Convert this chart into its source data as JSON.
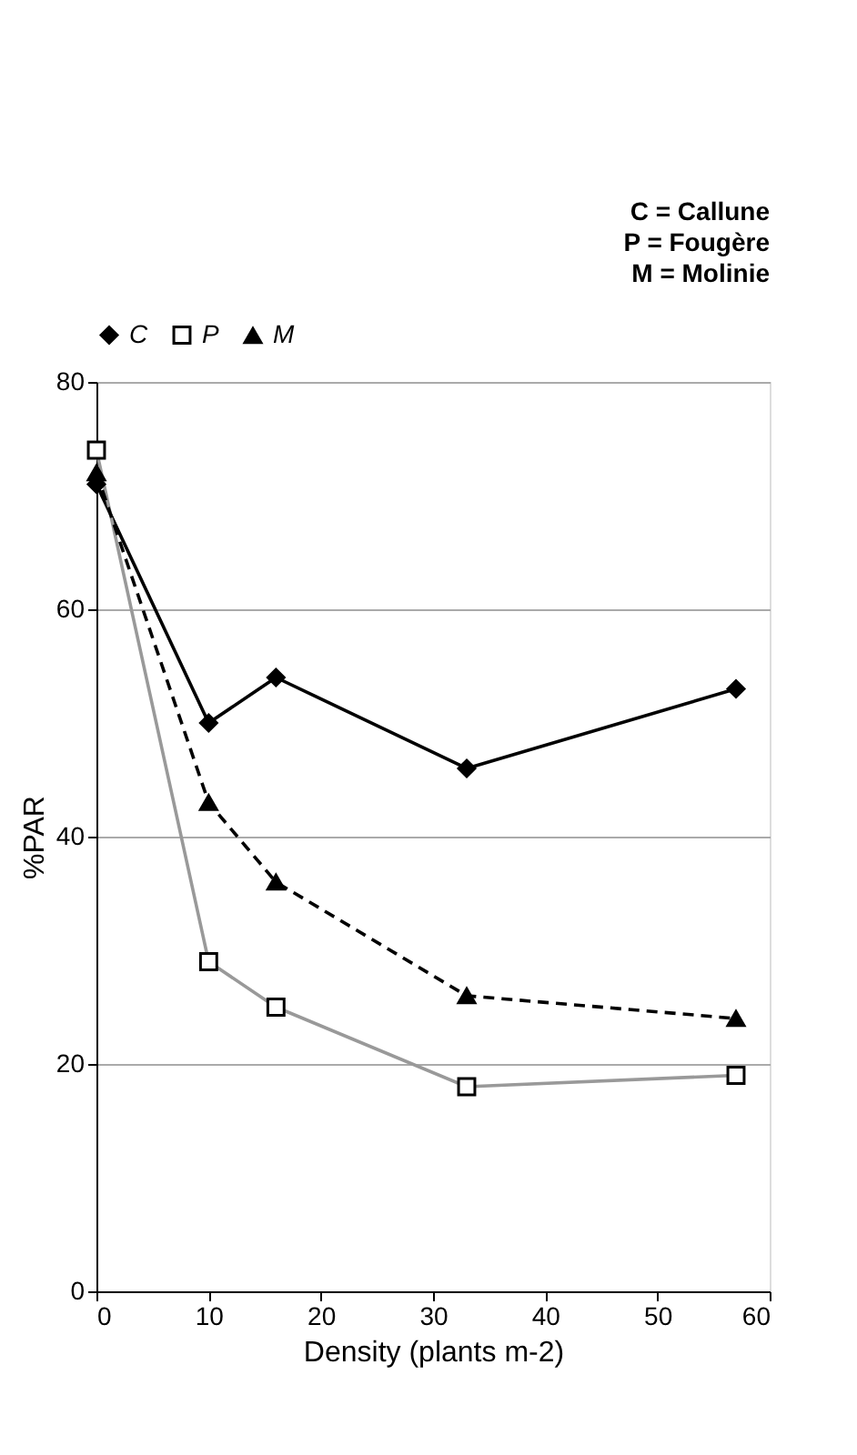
{
  "chart_data": {
    "type": "line",
    "xlabel": "Density (plants m-2)",
    "ylabel": "%PAR",
    "x": [
      0,
      10,
      16,
      33,
      57
    ],
    "series": [
      {
        "name": "C",
        "color": "#000000",
        "marker": "diamond",
        "line_style": "solid",
        "values": [
          71,
          50,
          54,
          46,
          53
        ]
      },
      {
        "name": "P",
        "color": "#999999",
        "marker": "square",
        "line_style": "solid",
        "values": [
          74,
          29,
          25,
          18,
          19
        ]
      },
      {
        "name": "M",
        "color": "#000000",
        "marker": "triangle",
        "line_style": "dashed",
        "values": [
          72,
          43,
          36,
          26,
          24
        ]
      }
    ],
    "xlim": [
      0,
      60
    ],
    "xticks": [
      0,
      10,
      20,
      30,
      40,
      50,
      60
    ],
    "ylim": [
      0,
      80
    ],
    "yticks": [
      0,
      20,
      40,
      60,
      80
    ],
    "grid": "y",
    "legend": "top",
    "annotations": [
      "C = Callune",
      "P = Fougère",
      "M = Molinie"
    ]
  }
}
